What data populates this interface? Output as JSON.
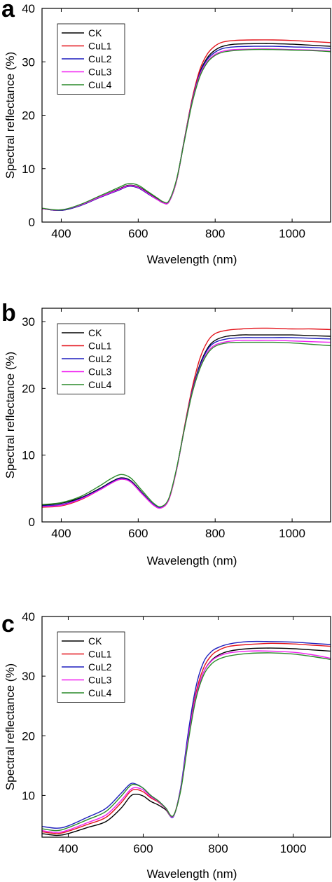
{
  "series_colors": {
    "CK": "#000000",
    "CuL1": "#e3131b",
    "CuL2": "#1d1dbd",
    "CuL3": "#f01ef0",
    "CuL4": "#2a8a2a"
  },
  "chart_data": [
    {
      "type": "line",
      "panel_label": "a",
      "xlabel": "Wavelength (nm)",
      "ylabel": "Spectral reflectance (%)",
      "xlim": [
        350,
        1100
      ],
      "ylim": [
        0,
        40
      ],
      "xticks": [
        400,
        600,
        800,
        1000
      ],
      "yticks": [
        0,
        10,
        20,
        30,
        40
      ],
      "grid": false,
      "legend_position": "top-left",
      "series": [
        {
          "name": "CK",
          "x": [
            350,
            400,
            450,
            500,
            550,
            575,
            600,
            625,
            650,
            665,
            680,
            700,
            720,
            740,
            760,
            780,
            800,
            820,
            850,
            900,
            950,
            1000,
            1050,
            1100
          ],
          "y": [
            2.5,
            2.2,
            3.2,
            4.7,
            6.2,
            6.9,
            6.6,
            5.5,
            4.3,
            3.7,
            3.9,
            8.0,
            15.5,
            22.8,
            28.0,
            30.8,
            32.2,
            32.9,
            33.3,
            33.4,
            33.4,
            33.3,
            33.1,
            32.9
          ]
        },
        {
          "name": "CuL1",
          "x": [
            350,
            400,
            450,
            500,
            550,
            575,
            600,
            625,
            650,
            665,
            680,
            700,
            720,
            740,
            760,
            780,
            800,
            820,
            850,
            900,
            950,
            1000,
            1050,
            1100
          ],
          "y": [
            2.5,
            2.2,
            3.1,
            4.6,
            6.0,
            6.7,
            6.4,
            5.3,
            4.2,
            3.6,
            3.8,
            7.8,
            15.5,
            23.0,
            28.5,
            31.5,
            33.0,
            33.7,
            34.0,
            34.1,
            34.1,
            34.0,
            33.8,
            33.6
          ]
        },
        {
          "name": "CuL2",
          "x": [
            350,
            400,
            450,
            500,
            550,
            575,
            600,
            625,
            650,
            665,
            680,
            700,
            720,
            740,
            760,
            780,
            800,
            820,
            850,
            900,
            950,
            1000,
            1050,
            1100
          ],
          "y": [
            2.5,
            2.2,
            3.1,
            4.6,
            6.0,
            6.7,
            6.4,
            5.3,
            4.2,
            3.6,
            3.8,
            7.9,
            15.4,
            22.6,
            27.8,
            30.5,
            31.8,
            32.5,
            32.8,
            32.9,
            32.9,
            32.8,
            32.7,
            32.5
          ]
        },
        {
          "name": "CuL3",
          "x": [
            350,
            400,
            450,
            500,
            550,
            575,
            600,
            625,
            650,
            665,
            680,
            700,
            720,
            740,
            760,
            780,
            800,
            820,
            850,
            900,
            950,
            1000,
            1050,
            1100
          ],
          "y": [
            2.5,
            2.3,
            3.2,
            4.7,
            6.1,
            6.8,
            6.5,
            5.4,
            4.2,
            3.6,
            3.8,
            7.9,
            15.3,
            22.4,
            27.5,
            30.1,
            31.4,
            32.0,
            32.3,
            32.4,
            32.4,
            32.3,
            32.2,
            32.0
          ]
        },
        {
          "name": "CuL4",
          "x": [
            350,
            400,
            450,
            500,
            550,
            575,
            600,
            625,
            650,
            665,
            680,
            700,
            720,
            740,
            760,
            780,
            800,
            820,
            850,
            900,
            950,
            1000,
            1050,
            1100
          ],
          "y": [
            2.6,
            2.3,
            3.3,
            4.9,
            6.5,
            7.2,
            6.9,
            5.7,
            4.5,
            3.8,
            4.0,
            8.1,
            15.2,
            22.2,
            27.2,
            29.9,
            31.2,
            31.8,
            32.1,
            32.3,
            32.3,
            32.2,
            32.1,
            31.9
          ]
        }
      ]
    },
    {
      "type": "line",
      "panel_label": "b",
      "xlabel": "Wavelength (nm)",
      "ylabel": "Spectral reflectance (%)",
      "xlim": [
        350,
        1100
      ],
      "ylim": [
        0,
        32
      ],
      "xticks": [
        400,
        600,
        800,
        1000
      ],
      "yticks": [
        0,
        10,
        20,
        30
      ],
      "grid": false,
      "legend_position": "top-left",
      "series": [
        {
          "name": "CK",
          "x": [
            350,
            400,
            450,
            500,
            530,
            555,
            580,
            610,
            640,
            660,
            680,
            700,
            720,
            740,
            760,
            780,
            800,
            830,
            870,
            900,
            950,
            1000,
            1050,
            1100
          ],
          "y": [
            2.5,
            2.8,
            3.6,
            5.0,
            6.0,
            6.6,
            6.2,
            4.4,
            2.6,
            2.2,
            3.5,
            8.0,
            14.0,
            19.5,
            23.5,
            26.0,
            27.2,
            27.8,
            28.0,
            28.0,
            28.0,
            28.0,
            27.9,
            27.8
          ]
        },
        {
          "name": "CuL1",
          "x": [
            350,
            400,
            450,
            500,
            530,
            555,
            580,
            610,
            640,
            660,
            680,
            700,
            720,
            740,
            760,
            780,
            800,
            830,
            870,
            900,
            950,
            1000,
            1050,
            1100
          ],
          "y": [
            2.2,
            2.4,
            3.3,
            4.8,
            5.8,
            6.4,
            6.0,
            4.2,
            2.5,
            2.1,
            3.4,
            7.9,
            14.2,
            20.0,
            24.4,
            27.0,
            28.2,
            28.7,
            28.9,
            29.0,
            29.0,
            28.9,
            28.9,
            28.8
          ]
        },
        {
          "name": "CuL2",
          "x": [
            350,
            400,
            450,
            500,
            530,
            555,
            580,
            610,
            640,
            660,
            680,
            700,
            720,
            740,
            760,
            780,
            800,
            830,
            870,
            900,
            950,
            1000,
            1050,
            1100
          ],
          "y": [
            2.4,
            2.6,
            3.5,
            4.9,
            5.9,
            6.5,
            6.1,
            4.3,
            2.6,
            2.2,
            3.5,
            8.0,
            14.0,
            19.5,
            23.3,
            25.8,
            26.9,
            27.4,
            27.6,
            27.6,
            27.6,
            27.6,
            27.5,
            27.4
          ]
        },
        {
          "name": "CuL3",
          "x": [
            350,
            400,
            450,
            500,
            530,
            555,
            580,
            610,
            640,
            660,
            680,
            700,
            720,
            740,
            760,
            780,
            800,
            830,
            870,
            900,
            950,
            1000,
            1050,
            1100
          ],
          "y": [
            2.3,
            2.5,
            3.4,
            4.8,
            5.8,
            6.4,
            6.0,
            4.2,
            2.5,
            2.1,
            3.4,
            7.9,
            13.9,
            19.3,
            23.0,
            25.4,
            26.5,
            27.0,
            27.2,
            27.2,
            27.2,
            27.1,
            27.0,
            26.9
          ]
        },
        {
          "name": "CuL4",
          "x": [
            350,
            400,
            450,
            500,
            530,
            555,
            580,
            610,
            640,
            660,
            680,
            700,
            720,
            740,
            760,
            780,
            800,
            830,
            870,
            900,
            950,
            1000,
            1050,
            1100
          ],
          "y": [
            2.6,
            2.9,
            3.8,
            5.4,
            6.5,
            7.1,
            6.6,
            4.7,
            2.8,
            2.3,
            3.6,
            8.1,
            13.9,
            19.2,
            22.9,
            25.2,
            26.3,
            26.8,
            26.9,
            26.9,
            26.9,
            26.8,
            26.6,
            26.4
          ]
        }
      ]
    },
    {
      "type": "line",
      "panel_label": "c",
      "xlabel": "Wavelength (nm)",
      "ylabel": "Spectral reflectance (%)",
      "xlim": [
        330,
        1100
      ],
      "ylim": [
        3,
        40
      ],
      "xticks": [
        400,
        600,
        800,
        1000
      ],
      "yticks": [
        10,
        20,
        30,
        40
      ],
      "grid": false,
      "legend_position": "top-left",
      "series": [
        {
          "name": "CK",
          "x": [
            330,
            370,
            400,
            450,
            500,
            540,
            565,
            580,
            600,
            620,
            640,
            660,
            680,
            700,
            720,
            740,
            760,
            780,
            800,
            830,
            880,
            940,
            1000,
            1050,
            1100
          ],
          "y": [
            3.6,
            3.3,
            3.6,
            4.6,
            5.6,
            7.8,
            9.8,
            10.2,
            9.9,
            9.0,
            8.4,
            7.6,
            6.5,
            11.0,
            19.5,
            26.5,
            30.5,
            32.5,
            33.5,
            34.2,
            34.6,
            34.7,
            34.6,
            34.4,
            34.2
          ]
        },
        {
          "name": "CuL1",
          "x": [
            330,
            370,
            400,
            450,
            500,
            540,
            565,
            580,
            600,
            620,
            640,
            660,
            680,
            700,
            720,
            740,
            760,
            780,
            800,
            830,
            880,
            940,
            1000,
            1050,
            1100
          ],
          "y": [
            3.9,
            3.6,
            4.0,
            5.1,
            6.3,
            8.7,
            10.6,
            11.0,
            10.6,
            9.6,
            8.9,
            7.8,
            6.5,
            11.2,
            19.8,
            27.0,
            31.2,
            33.3,
            34.3,
            35.0,
            35.3,
            35.5,
            35.4,
            35.2,
            35.0
          ]
        },
        {
          "name": "CuL2",
          "x": [
            330,
            370,
            400,
            450,
            500,
            540,
            565,
            580,
            600,
            620,
            640,
            660,
            680,
            700,
            720,
            740,
            760,
            780,
            800,
            830,
            880,
            940,
            1000,
            1050,
            1100
          ],
          "y": [
            4.8,
            4.5,
            4.9,
            6.3,
            7.8,
            10.3,
            11.9,
            11.9,
            11.2,
            10.0,
            9.1,
            7.9,
            6.4,
            11.3,
            20.5,
            28.0,
            32.2,
            34.0,
            34.8,
            35.4,
            35.8,
            35.8,
            35.7,
            35.5,
            35.3
          ]
        },
        {
          "name": "CuL3",
          "x": [
            330,
            370,
            400,
            450,
            500,
            540,
            565,
            580,
            600,
            620,
            640,
            660,
            680,
            700,
            720,
            740,
            760,
            780,
            800,
            830,
            880,
            940,
            1000,
            1050,
            1100
          ],
          "y": [
            4.1,
            3.8,
            4.2,
            5.4,
            6.7,
            9.1,
            10.9,
            11.3,
            10.9,
            9.8,
            9.0,
            7.8,
            6.5,
            11.0,
            19.6,
            26.5,
            30.5,
            32.4,
            33.3,
            33.9,
            34.2,
            34.2,
            34.0,
            33.6,
            33.0
          ]
        },
        {
          "name": "CuL4",
          "x": [
            330,
            370,
            400,
            450,
            500,
            540,
            565,
            580,
            600,
            620,
            640,
            660,
            680,
            700,
            720,
            740,
            760,
            780,
            800,
            830,
            880,
            940,
            1000,
            1050,
            1100
          ],
          "y": [
            4.4,
            4.1,
            4.6,
            5.9,
            7.3,
            9.8,
            11.6,
            11.8,
            11.2,
            10.0,
            9.1,
            7.9,
            6.6,
            10.8,
            19.0,
            26.0,
            30.0,
            31.9,
            32.8,
            33.4,
            33.8,
            33.9,
            33.7,
            33.3,
            32.8
          ]
        }
      ]
    }
  ]
}
